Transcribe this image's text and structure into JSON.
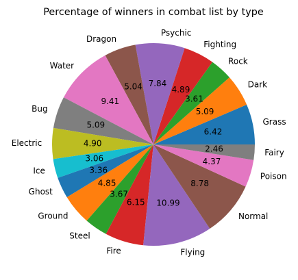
{
  "chart_data": {
    "type": "pie",
    "title": "Percentage of winners in combat list by type",
    "start_angle_deg": 0,
    "direction": "counterclockwise",
    "slices": [
      {
        "label": "Grass",
        "value": 6.42,
        "color": "#1f77b4"
      },
      {
        "label": "Dark",
        "value": 5.09,
        "color": "#ff7f0e"
      },
      {
        "label": "Rock",
        "value": 3.61,
        "color": "#2ca02c"
      },
      {
        "label": "Fighting",
        "value": 4.89,
        "color": "#d62728"
      },
      {
        "label": "Psychic",
        "value": 7.84,
        "color": "#9467bd"
      },
      {
        "label": "Dragon",
        "value": 5.04,
        "color": "#8c564b"
      },
      {
        "label": "Water",
        "value": 9.41,
        "color": "#e377c2"
      },
      {
        "label": "Bug",
        "value": 5.09,
        "color": "#7f7f7f"
      },
      {
        "label": "Electric",
        "value": 4.9,
        "color": "#bcbd22"
      },
      {
        "label": "Ice",
        "value": 3.06,
        "color": "#17becf"
      },
      {
        "label": "Ghost",
        "value": 3.36,
        "color": "#1f77b4"
      },
      {
        "label": "Ground",
        "value": 4.85,
        "color": "#ff7f0e"
      },
      {
        "label": "Steel",
        "value": 3.67,
        "color": "#2ca02c"
      },
      {
        "label": "Fire",
        "value": 6.15,
        "color": "#d62728"
      },
      {
        "label": "Flying",
        "value": 10.99,
        "color": "#9467bd"
      },
      {
        "label": "Normal",
        "value": 8.78,
        "color": "#8c564b"
      },
      {
        "label": "Poison",
        "value": 4.37,
        "color": "#e377c2"
      },
      {
        "label": "Fairy",
        "value": 2.46,
        "color": "#7f7f7f"
      }
    ]
  }
}
